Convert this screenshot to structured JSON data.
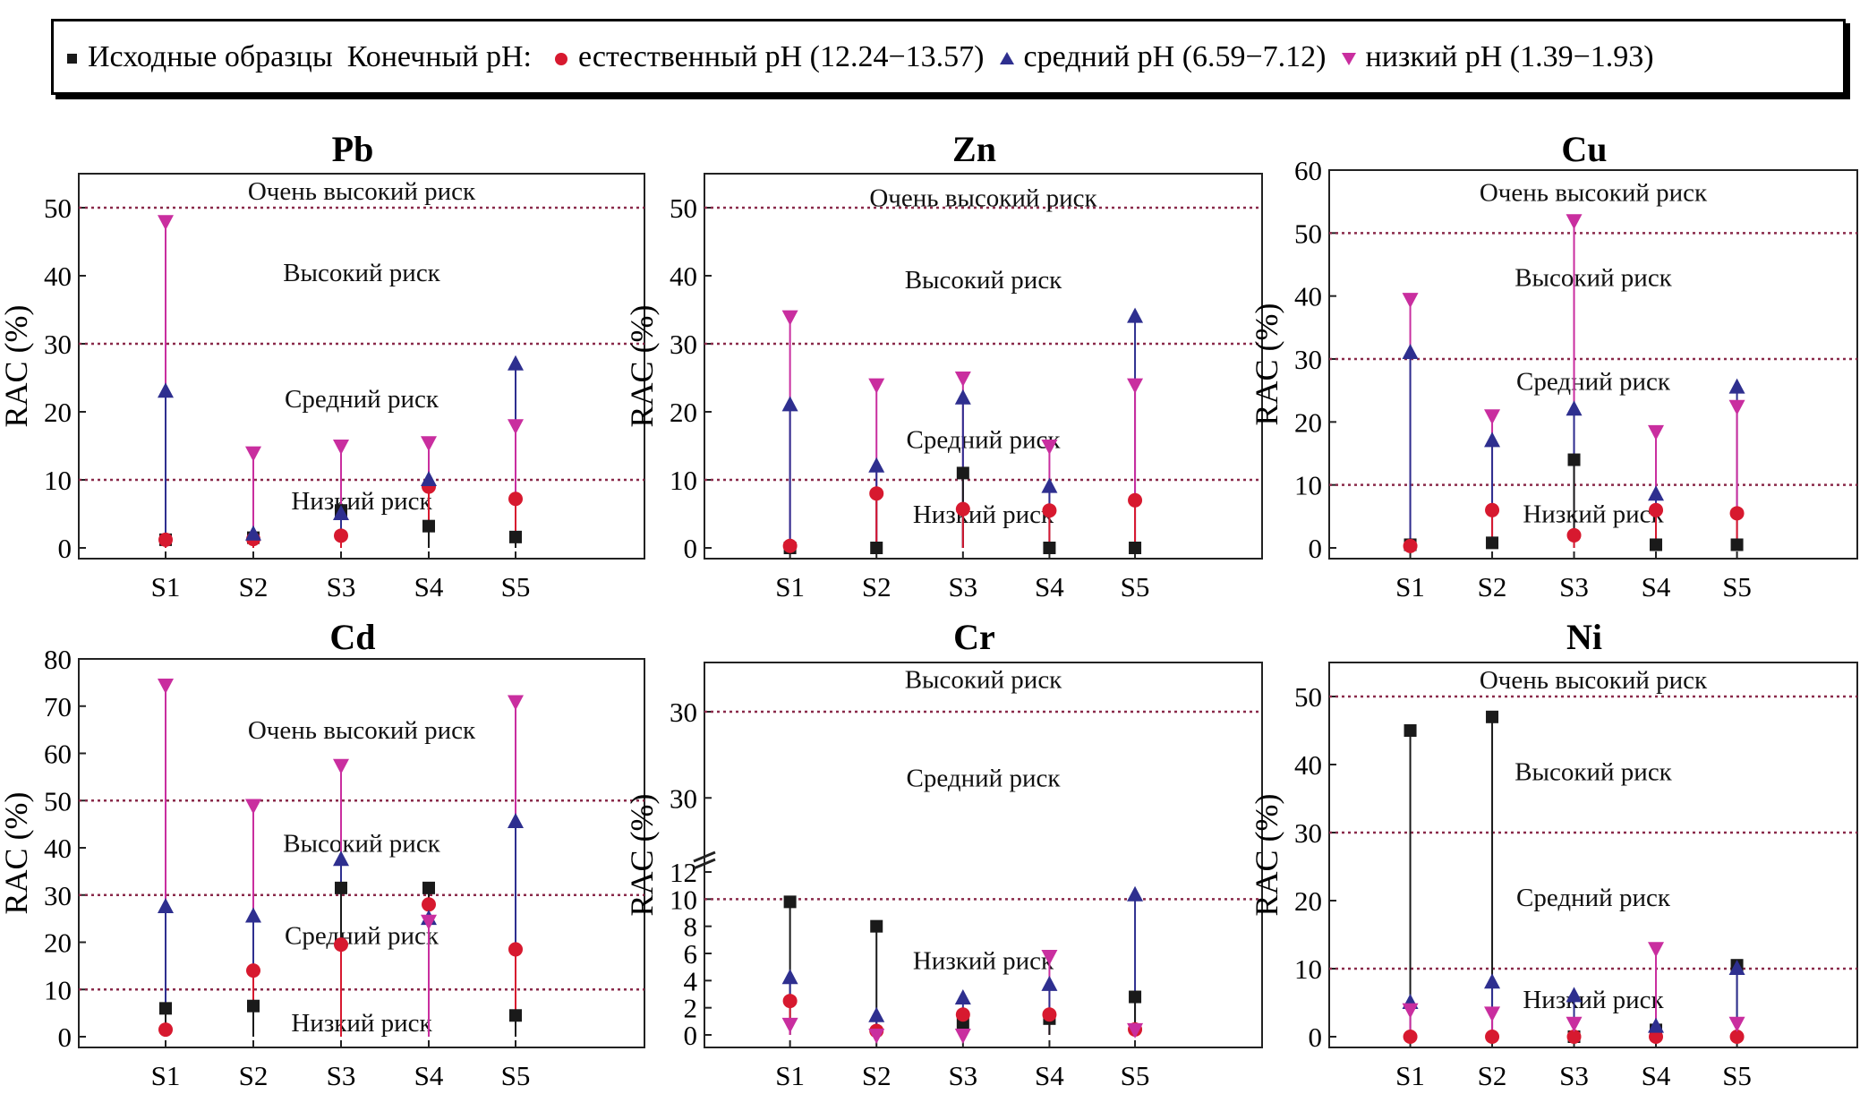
{
  "legend": {
    "initial": "Исходные образцы",
    "final_label": "Конечный pH:",
    "natural": "естественный pH (12.24−13.57)",
    "medium": "средний pH (6.59−7.12)",
    "low": "низкий pH (1.39−1.93)"
  },
  "colors": {
    "initial": "#1a1a1a",
    "natural": "#d7192f",
    "medium": "#2e2f8f",
    "low": "#c92e9f",
    "threshold": "#8a2a4a"
  },
  "chart_data": [
    {
      "type": "scatter",
      "title": "Pb",
      "ylabel": "RAC (%)",
      "categories": [
        "S1",
        "S2",
        "S3",
        "S4",
        "S5"
      ],
      "ylim": [
        0,
        55
      ],
      "yticks": [
        0,
        10,
        20,
        30,
        40,
        50
      ],
      "thresholds": [
        10,
        30,
        50
      ],
      "zones": [
        {
          "label": "Очень высокий риск",
          "y": 52.5
        },
        {
          "label": "Высокий риск",
          "y": 40.5
        },
        {
          "label": "Средний риск",
          "y": 22
        },
        {
          "label": "Низкий риск",
          "y": 7
        }
      ],
      "series": [
        {
          "name": "Исходные образцы",
          "key": "initial",
          "values": [
            1.2,
            1.5,
            5.5,
            3.2,
            1.6
          ]
        },
        {
          "name": "естественный pH (12.24−13.57)",
          "key": "natural",
          "values": [
            1.2,
            1.3,
            1.8,
            9.0,
            7.2
          ]
        },
        {
          "name": "средний pH (6.59−7.12)",
          "key": "medium",
          "values": [
            23,
            2,
            5,
            10,
            27
          ]
        },
        {
          "name": "низкий pH (1.39−1.93)",
          "key": "low",
          "values": [
            48,
            14,
            15,
            15.5,
            18
          ]
        }
      ]
    },
    {
      "type": "scatter",
      "title": "Zn",
      "ylabel": "RAC (%)",
      "categories": [
        "S1",
        "S2",
        "S3",
        "S4",
        "S5"
      ],
      "ylim": [
        0,
        55
      ],
      "yticks": [
        0,
        10,
        20,
        30,
        40,
        50
      ],
      "thresholds": [
        10,
        30,
        50
      ],
      "zones": [
        {
          "label": "Очень высокий риск",
          "y": 51.5
        },
        {
          "label": "Высокий риск",
          "y": 39.5
        },
        {
          "label": "Средний риск",
          "y": 16
        },
        {
          "label": "Низкий риск",
          "y": 5
        }
      ],
      "series": [
        {
          "name": "Исходные образцы",
          "key": "initial",
          "values": [
            0,
            0,
            11,
            0,
            0
          ]
        },
        {
          "name": "естественный pH (12.24−13.57)",
          "key": "natural",
          "values": [
            0.3,
            8,
            5.7,
            5.5,
            7
          ]
        },
        {
          "name": "средний pH (6.59−7.12)",
          "key": "medium",
          "values": [
            21,
            12,
            22,
            9,
            34
          ]
        },
        {
          "name": "низкий pH (1.39−1.93)",
          "key": "low",
          "values": [
            34,
            24,
            25,
            15,
            24
          ]
        }
      ]
    },
    {
      "type": "scatter",
      "title": "Cu",
      "ylabel": "RAC (%)",
      "categories": [
        "S1",
        "S2",
        "S3",
        "S4",
        "S5"
      ],
      "ylim": [
        0,
        60
      ],
      "yticks": [
        0,
        10,
        20,
        30,
        40,
        50,
        60
      ],
      "thresholds": [
        10,
        30,
        50
      ],
      "zones": [
        {
          "label": "Очень высокий риск",
          "y": 56.5
        },
        {
          "label": "Высокий риск",
          "y": 43
        },
        {
          "label": "Средний риск",
          "y": 26.5
        },
        {
          "label": "Низкий риск",
          "y": 5.5
        }
      ],
      "series": [
        {
          "name": "Исходные образцы",
          "key": "initial",
          "values": [
            0.5,
            0.8,
            14,
            0.5,
            0.5
          ]
        },
        {
          "name": "естественный pH (12.24−13.57)",
          "key": "natural",
          "values": [
            0.3,
            6,
            2,
            6,
            5.5
          ]
        },
        {
          "name": "средний pH (6.59−7.12)",
          "key": "medium",
          "values": [
            31,
            17,
            22,
            8.5,
            25.5
          ]
        },
        {
          "name": "низкий pH (1.39−1.93)",
          "key": "low",
          "values": [
            39.5,
            21,
            52,
            18.5,
            22.5
          ]
        }
      ]
    },
    {
      "type": "scatter",
      "title": "Cd",
      "ylabel": "RAC (%)",
      "categories": [
        "S1",
        "S2",
        "S3",
        "S4",
        "S5"
      ],
      "ylim": [
        0,
        80
      ],
      "yticks": [
        0,
        10,
        20,
        30,
        40,
        50,
        60,
        70,
        80
      ],
      "thresholds": [
        10,
        30,
        50
      ],
      "zones": [
        {
          "label": "Очень высокий риск",
          "y": 65
        },
        {
          "label": "Высокий риск",
          "y": 41
        },
        {
          "label": "Средний риск",
          "y": 21.5
        },
        {
          "label": "Низкий риск",
          "y": 3
        }
      ],
      "series": [
        {
          "name": "Исходные образцы",
          "key": "initial",
          "values": [
            6,
            6.5,
            31.5,
            31.5,
            4.5
          ]
        },
        {
          "name": "естественный pH (12.24−13.57)",
          "key": "natural",
          "values": [
            1.5,
            14,
            19.5,
            28,
            18.5
          ]
        },
        {
          "name": "средний pH (6.59−7.12)",
          "key": "medium",
          "values": [
            27.5,
            25.5,
            37.5,
            25,
            45.5
          ]
        },
        {
          "name": "низкий pH (1.39−1.93)",
          "key": "low",
          "values": [
            74.5,
            49,
            57.5,
            24.5,
            71
          ]
        }
      ]
    },
    {
      "type": "scatter",
      "title": "Cr",
      "ylabel": "RAC (%)",
      "categories": [
        "S1",
        "S2",
        "S3",
        "S4",
        "S5"
      ],
      "ylim": [
        0,
        12
      ],
      "yticks": [
        0,
        2,
        4,
        6,
        8,
        10,
        12
      ],
      "upper_ticks": [
        "30",
        "30"
      ],
      "thresholds": [
        10,
        30
      ],
      "zones": [
        {
          "label": "Высокий риск",
          "y": 34
        },
        {
          "label": "Средний риск",
          "y": 22
        },
        {
          "label": "Низкий риск",
          "y": 5.5
        }
      ],
      "series": [
        {
          "name": "Исходные образцы",
          "key": "initial",
          "values": [
            9.8,
            8,
            0.8,
            1.2,
            2.8
          ]
        },
        {
          "name": "естественный pH (12.24−13.57)",
          "key": "natural",
          "values": [
            2.5,
            0.3,
            1.5,
            1.5,
            0.4
          ]
        },
        {
          "name": "средний pH (6.59−7.12)",
          "key": "medium",
          "values": [
            4.2,
            1.4,
            2.7,
            3.7,
            10.3
          ]
        },
        {
          "name": "низкий pH (1.39−1.93)",
          "key": "low",
          "values": [
            0.8,
            0,
            0,
            5.8,
            0.4
          ]
        }
      ]
    },
    {
      "type": "scatter",
      "title": "Ni",
      "ylabel": "RAC (%)",
      "categories": [
        "S1",
        "S2",
        "S3",
        "S4",
        "S5"
      ],
      "ylim": [
        0,
        55
      ],
      "yticks": [
        0,
        10,
        20,
        30,
        40,
        50
      ],
      "thresholds": [
        10,
        30,
        50
      ],
      "zones": [
        {
          "label": "Очень высокий риск",
          "y": 52.5
        },
        {
          "label": "Высокий риск",
          "y": 39
        },
        {
          "label": "Средний риск",
          "y": 20.5
        },
        {
          "label": "Низкий риск",
          "y": 5.5
        }
      ],
      "series": [
        {
          "name": "Исходные образцы",
          "key": "initial",
          "values": [
            45,
            47,
            0,
            1,
            10.5
          ]
        },
        {
          "name": "естественный pH (12.24−13.57)",
          "key": "natural",
          "values": [
            0,
            0,
            0,
            0,
            0
          ]
        },
        {
          "name": "средний pH (6.59−7.12)",
          "key": "medium",
          "values": [
            5,
            8,
            6,
            1.5,
            10
          ]
        },
        {
          "name": "низкий pH (1.39−1.93)",
          "key": "low",
          "values": [
            4,
            3.5,
            2,
            13,
            2
          ]
        }
      ]
    }
  ]
}
